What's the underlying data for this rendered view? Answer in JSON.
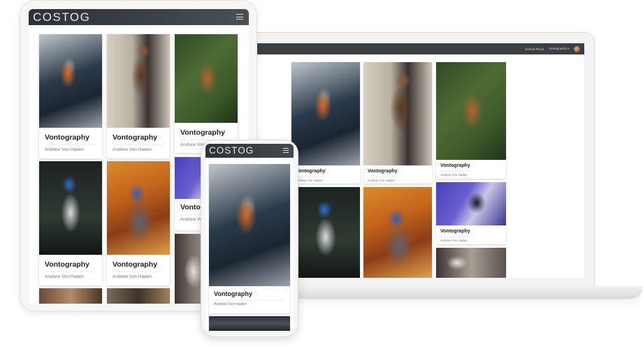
{
  "brand": "COSTOG",
  "laptop_nav": {
    "submit_label": "Submit Photo",
    "user_label": "Vontography ▾"
  },
  "card": {
    "title": "Vontography",
    "author": "Andrew Von Haden"
  },
  "icons": {
    "menu": "hamburger-menu-icon",
    "avatar": "user-avatar"
  },
  "colors": {
    "navbar": "#3a3f43",
    "page_background": "#ffffff",
    "card_title": "#222222",
    "card_author": "#777777"
  }
}
